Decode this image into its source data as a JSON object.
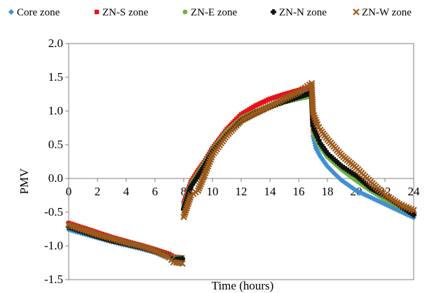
{
  "chart_data": {
    "type": "scatter",
    "xlabel": "Time (hours)",
    "ylabel": "PMV",
    "xlim": [
      0,
      24
    ],
    "ylim": [
      -1.5,
      2.0
    ],
    "x_ticks": [
      "0",
      "2",
      "4",
      "6",
      "8",
      "10",
      "12",
      "14",
      "16",
      "18",
      "20",
      "22",
      "24"
    ],
    "y_ticks": [
      "-1.5",
      "-1.0",
      "-0.5",
      "0.0",
      "0.5",
      "1.0",
      "1.5",
      "2.0"
    ],
    "grid": false,
    "legend_position": "top",
    "series": [
      {
        "name": "Core zone",
        "marker": "diamond",
        "color": "#3f8fd6",
        "points": [
          [
            0.0,
            -0.76
          ],
          [
            1.0,
            -0.82
          ],
          [
            2.0,
            -0.88
          ],
          [
            3.0,
            -0.94
          ],
          [
            4.0,
            -0.99
          ],
          [
            5.0,
            -1.04
          ],
          [
            6.0,
            -1.1
          ],
          [
            7.0,
            -1.17
          ],
          [
            7.2,
            -1.21
          ],
          [
            7.9,
            -1.21
          ],
          [
            8.0,
            -0.43
          ],
          [
            8.5,
            -0.1
          ],
          [
            9.0,
            0.05
          ],
          [
            9.5,
            0.22
          ],
          [
            10.0,
            0.4
          ],
          [
            11.0,
            0.66
          ],
          [
            12.0,
            0.87
          ],
          [
            13.0,
            0.99
          ],
          [
            14.0,
            1.08
          ],
          [
            15.0,
            1.18
          ],
          [
            16.0,
            1.25
          ],
          [
            16.9,
            1.3
          ],
          [
            17.0,
            0.63
          ],
          [
            17.2,
            0.45
          ],
          [
            17.5,
            0.33
          ],
          [
            18.0,
            0.18
          ],
          [
            18.5,
            0.07
          ],
          [
            19.0,
            -0.03
          ],
          [
            20.0,
            -0.18
          ],
          [
            21.0,
            -0.28
          ],
          [
            22.0,
            -0.38
          ],
          [
            23.0,
            -0.48
          ],
          [
            24.0,
            -0.58
          ]
        ]
      },
      {
        "name": "ZN-S zone",
        "marker": "square",
        "color": "#e8101a",
        "points": [
          [
            0.0,
            -0.66
          ],
          [
            1.0,
            -0.73
          ],
          [
            2.0,
            -0.8
          ],
          [
            3.0,
            -0.87
          ],
          [
            4.0,
            -0.93
          ],
          [
            5.0,
            -0.99
          ],
          [
            6.0,
            -1.05
          ],
          [
            7.0,
            -1.12
          ],
          [
            7.3,
            -1.16
          ],
          [
            7.9,
            -1.17
          ],
          [
            8.0,
            -0.36
          ],
          [
            8.5,
            -0.05
          ],
          [
            9.0,
            0.12
          ],
          [
            9.5,
            0.27
          ],
          [
            10.0,
            0.45
          ],
          [
            11.0,
            0.73
          ],
          [
            12.0,
            0.95
          ],
          [
            13.0,
            1.08
          ],
          [
            14.0,
            1.18
          ],
          [
            15.0,
            1.25
          ],
          [
            16.0,
            1.31
          ],
          [
            16.9,
            1.36
          ],
          [
            17.0,
            0.7
          ],
          [
            17.3,
            0.58
          ],
          [
            17.5,
            0.5
          ],
          [
            18.0,
            0.35
          ],
          [
            19.0,
            0.16
          ],
          [
            20.0,
            0.02
          ],
          [
            21.0,
            -0.15
          ],
          [
            22.0,
            -0.27
          ],
          [
            23.0,
            -0.38
          ],
          [
            24.0,
            -0.5
          ]
        ]
      },
      {
        "name": "ZN-E zone",
        "marker": "circle",
        "color": "#6cb33f",
        "points": [
          [
            0.0,
            -0.7
          ],
          [
            1.0,
            -0.77
          ],
          [
            2.0,
            -0.84
          ],
          [
            3.0,
            -0.9
          ],
          [
            4.0,
            -0.96
          ],
          [
            5.0,
            -1.01
          ],
          [
            6.0,
            -1.07
          ],
          [
            7.0,
            -1.14
          ],
          [
            7.3,
            -1.18
          ],
          [
            7.9,
            -1.17
          ],
          [
            8.0,
            -0.4
          ],
          [
            8.5,
            -0.08
          ],
          [
            9.0,
            0.08
          ],
          [
            9.5,
            0.25
          ],
          [
            10.0,
            0.43
          ],
          [
            11.0,
            0.7
          ],
          [
            12.0,
            0.9
          ],
          [
            13.0,
            1.0
          ],
          [
            14.0,
            1.07
          ],
          [
            15.0,
            1.13
          ],
          [
            16.0,
            1.18
          ],
          [
            16.9,
            1.22
          ],
          [
            17.0,
            0.68
          ],
          [
            17.3,
            0.55
          ],
          [
            17.5,
            0.47
          ],
          [
            18.0,
            0.32
          ],
          [
            19.0,
            0.13
          ],
          [
            20.0,
            -0.03
          ],
          [
            21.0,
            -0.18
          ],
          [
            22.0,
            -0.31
          ],
          [
            23.0,
            -0.42
          ],
          [
            24.0,
            -0.54
          ]
        ]
      },
      {
        "name": "ZN-N zone",
        "marker": "plus",
        "color": "#111111",
        "points": [
          [
            0.0,
            -0.72
          ],
          [
            1.0,
            -0.79
          ],
          [
            2.0,
            -0.86
          ],
          [
            3.0,
            -0.92
          ],
          [
            4.0,
            -0.97
          ],
          [
            5.0,
            -1.02
          ],
          [
            6.0,
            -1.08
          ],
          [
            7.0,
            -1.15
          ],
          [
            7.3,
            -1.2
          ],
          [
            7.9,
            -1.19
          ],
          [
            8.0,
            -0.46
          ],
          [
            8.5,
            -0.12
          ],
          [
            9.0,
            0.04
          ],
          [
            9.5,
            0.21
          ],
          [
            10.0,
            0.4
          ],
          [
            11.0,
            0.66
          ],
          [
            12.0,
            0.86
          ],
          [
            13.0,
            0.97
          ],
          [
            14.0,
            1.06
          ],
          [
            15.0,
            1.14
          ],
          [
            16.0,
            1.21
          ],
          [
            16.9,
            1.27
          ],
          [
            17.0,
            0.78
          ],
          [
            17.3,
            0.61
          ],
          [
            17.5,
            0.52
          ],
          [
            18.0,
            0.37
          ],
          [
            19.0,
            0.18
          ],
          [
            20.0,
            0.04
          ],
          [
            21.0,
            -0.14
          ],
          [
            22.0,
            -0.26
          ],
          [
            23.0,
            -0.4
          ],
          [
            24.0,
            -0.54
          ]
        ]
      },
      {
        "name": "ZN-W zone",
        "marker": "cross",
        "color": "#9c5a1a",
        "points": [
          [
            0.0,
            -0.69
          ],
          [
            1.0,
            -0.76
          ],
          [
            2.0,
            -0.83
          ],
          [
            3.0,
            -0.89
          ],
          [
            4.0,
            -0.95
          ],
          [
            5.0,
            -1.0
          ],
          [
            6.0,
            -1.07
          ],
          [
            7.0,
            -1.17
          ],
          [
            7.3,
            -1.24
          ],
          [
            7.9,
            -1.26
          ],
          [
            8.0,
            -0.57
          ],
          [
            8.5,
            -0.25
          ],
          [
            9.0,
            -0.18
          ],
          [
            9.5,
            0.08
          ],
          [
            10.0,
            0.35
          ],
          [
            11.0,
            0.64
          ],
          [
            12.0,
            0.86
          ],
          [
            13.0,
            0.97
          ],
          [
            14.0,
            1.07
          ],
          [
            15.0,
            1.18
          ],
          [
            16.0,
            1.28
          ],
          [
            16.9,
            1.41
          ],
          [
            17.0,
            0.97
          ],
          [
            17.3,
            0.8
          ],
          [
            17.5,
            0.72
          ],
          [
            18.0,
            0.58
          ],
          [
            19.0,
            0.34
          ],
          [
            20.0,
            0.16
          ],
          [
            21.0,
            -0.05
          ],
          [
            22.0,
            -0.24
          ],
          [
            23.0,
            -0.38
          ],
          [
            24.0,
            -0.47
          ]
        ]
      }
    ]
  }
}
